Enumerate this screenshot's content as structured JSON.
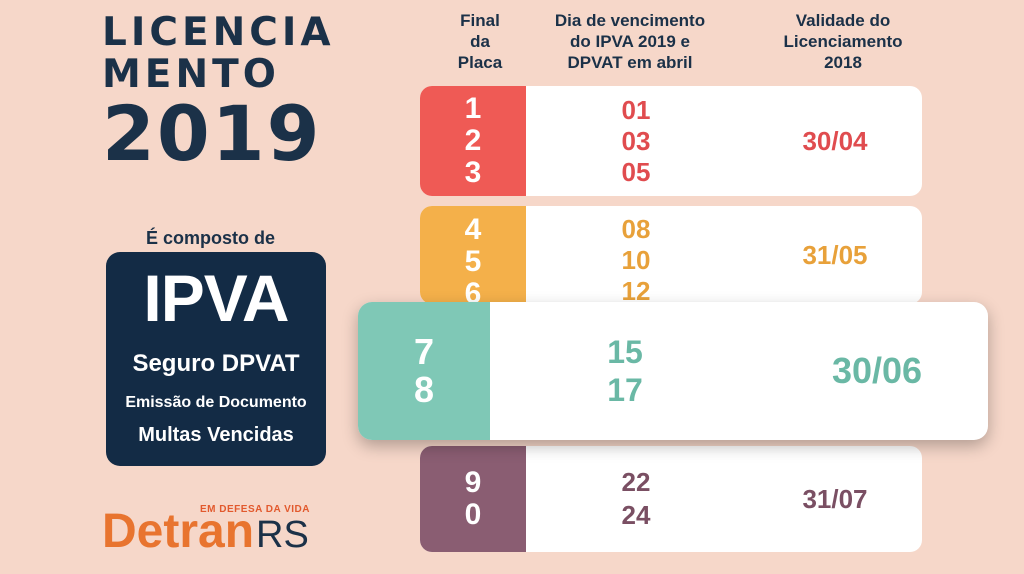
{
  "poster": {
    "title_line1": "LICENCIA",
    "title_line2": "MENTO",
    "title_line3": "2019",
    "composto": "É composto de",
    "box": {
      "title": "IPVA",
      "line1": "Seguro DPVAT",
      "line2": "Emissão de Documento",
      "line3": "Multas Vencidas"
    },
    "tagline": "EM DEFESA DA VIDA",
    "logo_a": "Detran",
    "logo_b": "RS"
  },
  "table": {
    "headers": {
      "col1": "Final\nda\nPlaca",
      "col2": "Dia de vencimento\ndo IPVA 2019 e\nDPVAT em abril",
      "col3": "Validade do\nLicenciamento\n2018"
    },
    "rows": [
      {
        "finals": [
          "1",
          "2",
          "3"
        ],
        "days": [
          "01",
          "03",
          "05"
        ],
        "validity": "30/04",
        "color": "#ef5a55"
      },
      {
        "finals": [
          "4",
          "5",
          "6"
        ],
        "days": [
          "08",
          "10",
          "12"
        ],
        "validity": "31/05",
        "color": "#f4b04a"
      },
      {
        "finals": [
          "7",
          "8"
        ],
        "days": [
          "15",
          "17"
        ],
        "validity": "30/06",
        "color": "#7fc8b6"
      },
      {
        "finals": [
          "9",
          "0"
        ],
        "days": [
          "22",
          "24"
        ],
        "validity": "31/07",
        "color": "#8a5d72"
      }
    ]
  }
}
